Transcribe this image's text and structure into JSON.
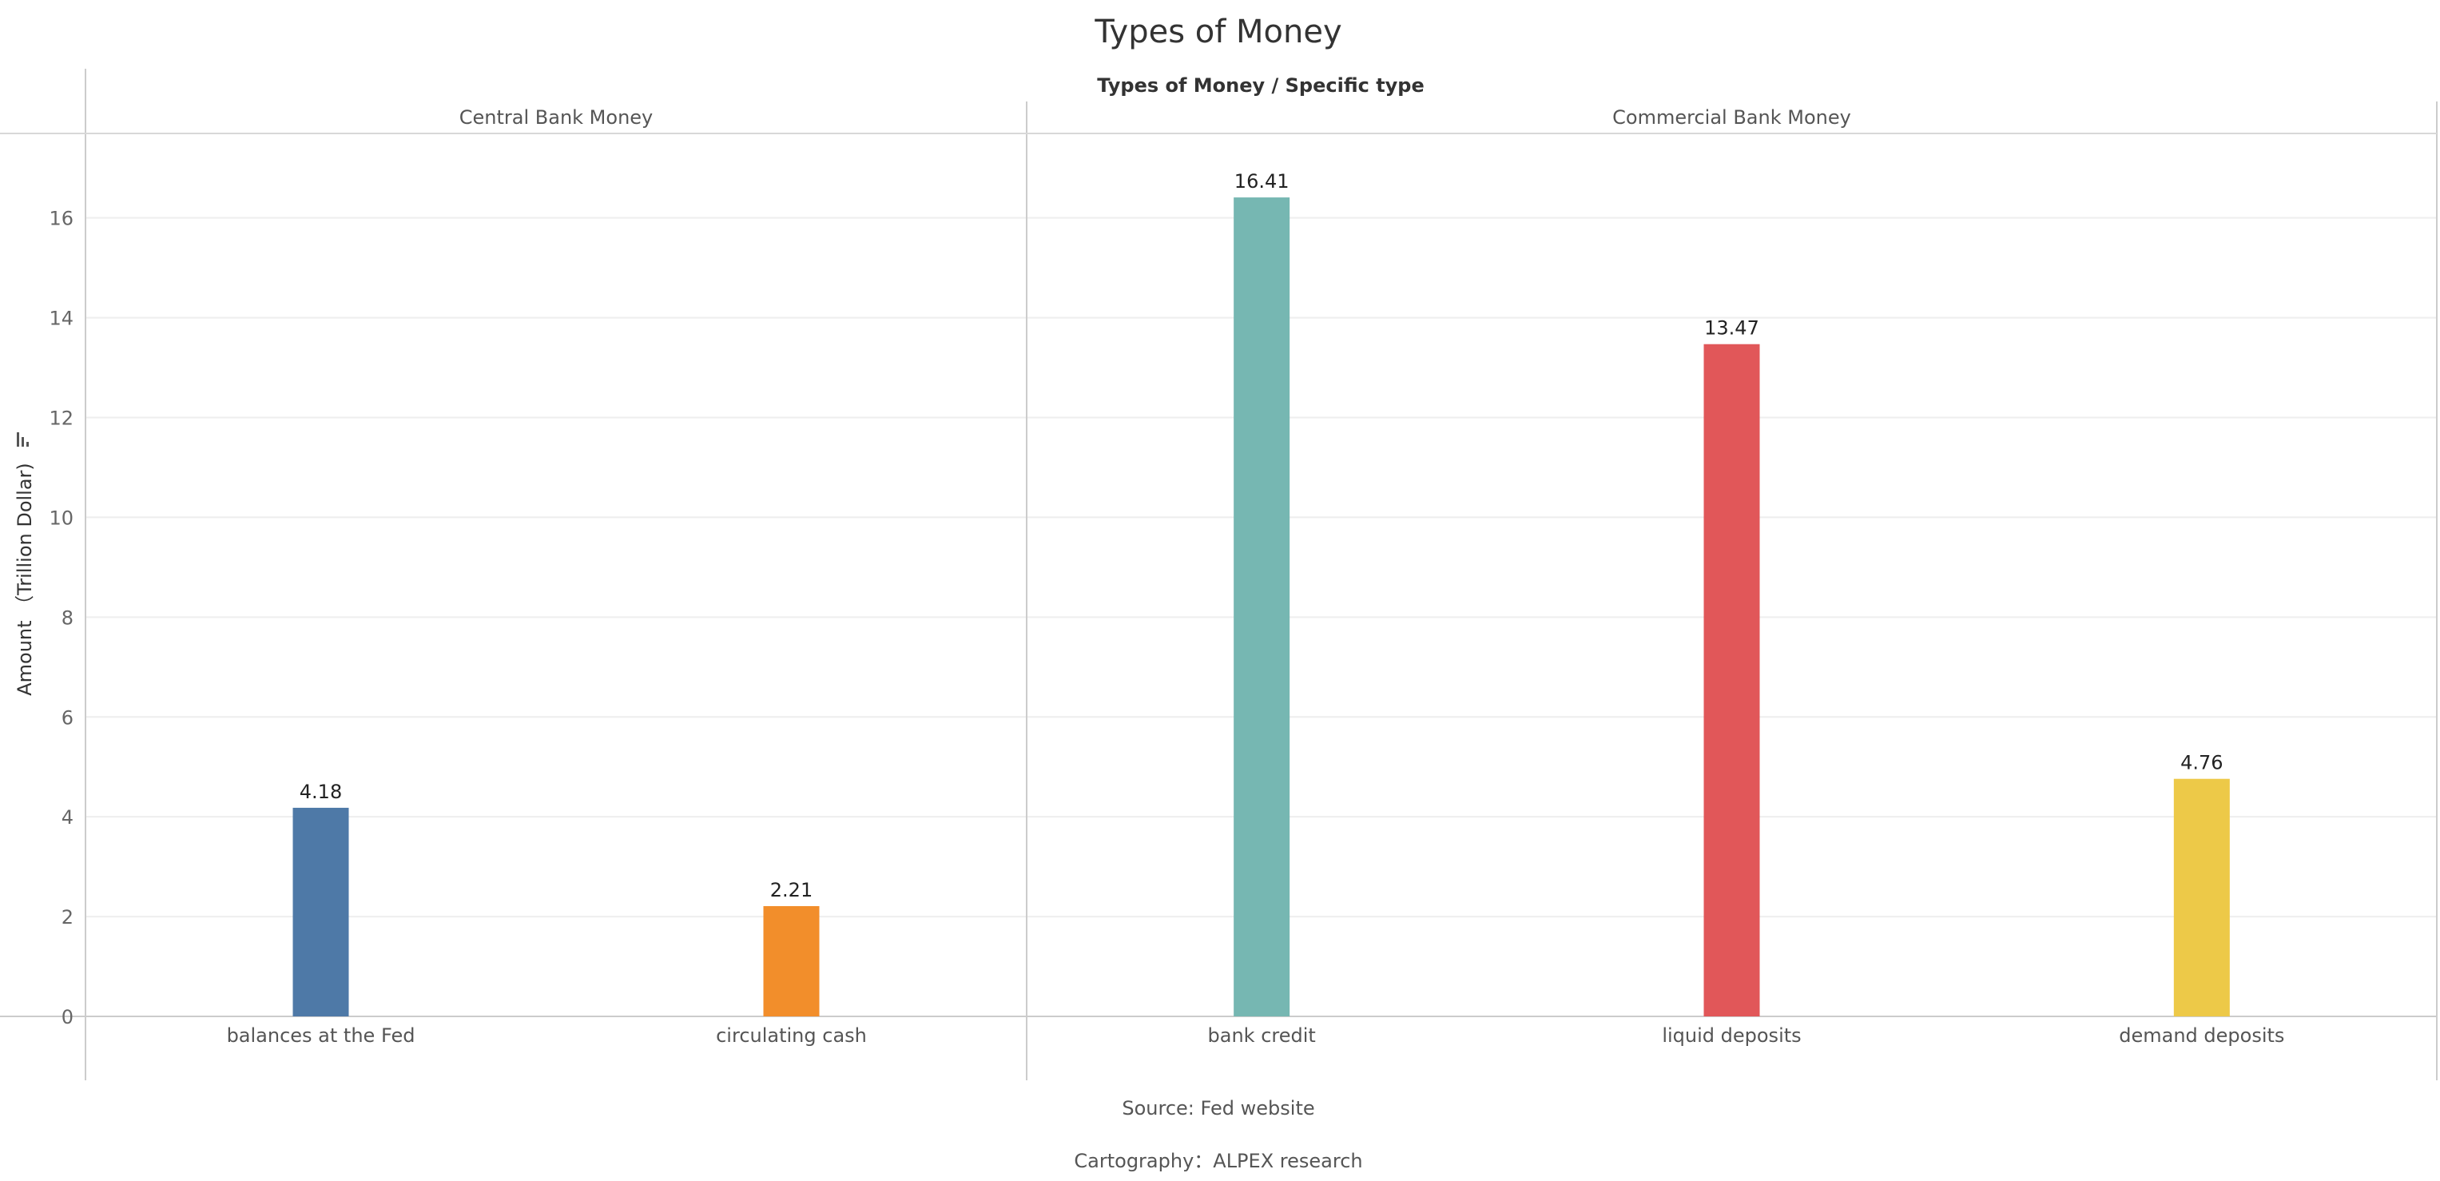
{
  "chart_data": {
    "type": "bar",
    "title": "Types of Money",
    "header_label": "Types of Money  /  Specific type",
    "ylabel": "Amount （Trillion Dollar)",
    "ylim": [
      0,
      17.5
    ],
    "yticks": [
      0,
      2,
      4,
      6,
      8,
      10,
      12,
      14,
      16
    ],
    "grid": true,
    "groups": [
      {
        "name": "Central Bank Money",
        "categories": [
          "balances at the Fed",
          "circulating cash"
        ],
        "values": [
          4.18,
          2.21
        ],
        "colors": [
          "#4e79a7",
          "#f28e2b"
        ],
        "labels": [
          "4.18",
          "2.21"
        ]
      },
      {
        "name": "Commercial Bank Money",
        "categories": [
          "bank credit",
          "liquid deposits",
          "demand deposits"
        ],
        "values": [
          16.41,
          13.47,
          4.76
        ],
        "colors": [
          "#76b7b2",
          "#e15759",
          "#edc948"
        ],
        "labels": [
          "16.41",
          "13.47",
          "4.76"
        ]
      }
    ],
    "source": "Source: Fed website",
    "credit": "Cartography：ALPEX research"
  }
}
